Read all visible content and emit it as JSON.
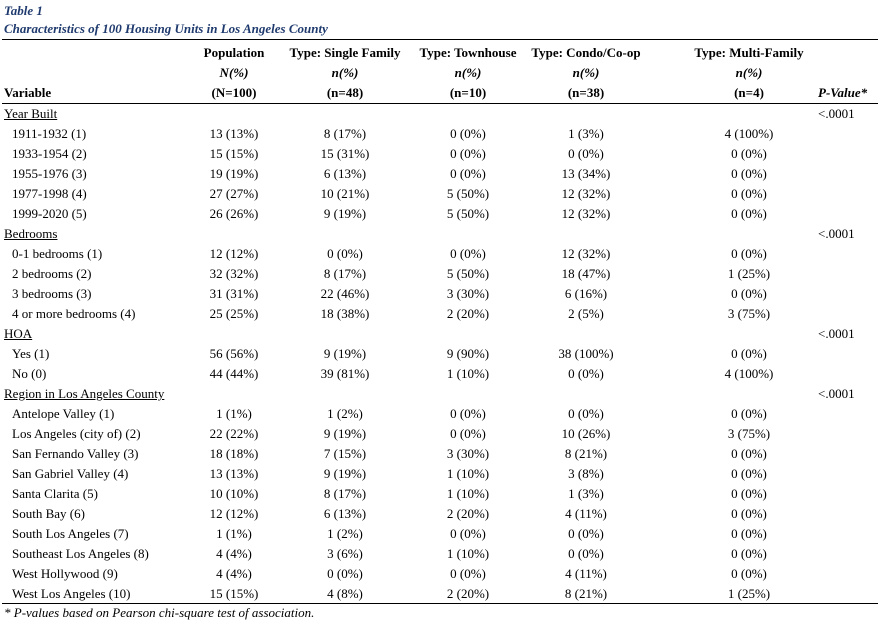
{
  "table_label": "Table 1",
  "title": "Characteristics of 100 Housing Units in Los Angeles County",
  "columns": [
    {
      "name": "Population",
      "stat": "N(%)",
      "n": "(N=100)"
    },
    {
      "name": "Type: Single Family",
      "stat": "n(%)",
      "n": "(n=48)"
    },
    {
      "name": "Type: Townhouse",
      "stat": "n(%)",
      "n": "(n=10)"
    },
    {
      "name": "Type: Condo/Co-op",
      "stat": "n(%)",
      "n": "(n=38)"
    },
    {
      "name": "Type: Multi-Family",
      "stat": "n(%)",
      "n": "(n=4)"
    }
  ],
  "variable_header": "Variable",
  "pvalue_header": "P-Value*",
  "sections": [
    {
      "label": "Year Built",
      "pvalue": "<.0001",
      "rows": [
        {
          "label": "1911-1932 (1)",
          "values": [
            "13 (13%)",
            "8 (17%)",
            "0 (0%)",
            "1 (3%)",
            "4 (100%)"
          ]
        },
        {
          "label": "1933-1954 (2)",
          "values": [
            "15 (15%)",
            "15 (31%)",
            "0 (0%)",
            "0 (0%)",
            "0 (0%)"
          ]
        },
        {
          "label": "1955-1976 (3)",
          "values": [
            "19 (19%)",
            "6 (13%)",
            "0 (0%)",
            "13 (34%)",
            "0 (0%)"
          ]
        },
        {
          "label": "1977-1998 (4)",
          "values": [
            "27 (27%)",
            "10 (21%)",
            "5 (50%)",
            "12 (32%)",
            "0 (0%)"
          ]
        },
        {
          "label": "1999-2020 (5)",
          "values": [
            "26 (26%)",
            "9 (19%)",
            "5 (50%)",
            "12 (32%)",
            "0 (0%)"
          ]
        }
      ]
    },
    {
      "label": "Bedrooms",
      "pvalue": "<.0001",
      "rows": [
        {
          "label": "0-1 bedrooms (1)",
          "values": [
            "12 (12%)",
            "0 (0%)",
            "0 (0%)",
            "12 (32%)",
            "0 (0%)"
          ]
        },
        {
          "label": "2 bedrooms (2)",
          "values": [
            "32 (32%)",
            "8 (17%)",
            "5 (50%)",
            "18 (47%)",
            "1 (25%)"
          ]
        },
        {
          "label": "3 bedrooms (3)",
          "values": [
            "31 (31%)",
            "22 (46%)",
            "3 (30%)",
            "6 (16%)",
            "0 (0%)"
          ]
        },
        {
          "label": "4 or more bedrooms (4)",
          "values": [
            "25 (25%)",
            "18 (38%)",
            "2 (20%)",
            "2 (5%)",
            "3 (75%)"
          ]
        }
      ]
    },
    {
      "label": "HOA",
      "pvalue": "<.0001",
      "rows": [
        {
          "label": "Yes (1)",
          "values": [
            "56 (56%)",
            "9 (19%)",
            "9 (90%)",
            "38 (100%)",
            "0 (0%)"
          ]
        },
        {
          "label": "No (0)",
          "values": [
            "44 (44%)",
            "39 (81%)",
            "1 (10%)",
            "0 (0%)",
            "4 (100%)"
          ]
        }
      ]
    },
    {
      "label": "Region in Los Angeles County",
      "pvalue": "<.0001",
      "rows": [
        {
          "label": "Antelope Valley (1)",
          "values": [
            "1 (1%)",
            "1 (2%)",
            "0 (0%)",
            "0 (0%)",
            "0 (0%)"
          ]
        },
        {
          "label": "Los Angeles (city of) (2)",
          "values": [
            "22 (22%)",
            "9 (19%)",
            "0 (0%)",
            "10 (26%)",
            "3 (75%)"
          ]
        },
        {
          "label": "San Fernando Valley (3)",
          "values": [
            "18 (18%)",
            "7 (15%)",
            "3 (30%)",
            "8 (21%)",
            "0 (0%)"
          ]
        },
        {
          "label": "San Gabriel Valley (4)",
          "values": [
            "13 (13%)",
            "9 (19%)",
            "1 (10%)",
            "3 (8%)",
            "0 (0%)"
          ]
        },
        {
          "label": "Santa Clarita (5)",
          "values": [
            "10 (10%)",
            "8 (17%)",
            "1 (10%)",
            "1 (3%)",
            "0 (0%)"
          ]
        },
        {
          "label": "South Bay (6)",
          "values": [
            "12 (12%)",
            "6 (13%)",
            "2 (20%)",
            "4 (11%)",
            "0 (0%)"
          ]
        },
        {
          "label": "South Los Angeles (7)",
          "values": [
            "1 (1%)",
            "1 (2%)",
            "0 (0%)",
            "0 (0%)",
            "0 (0%)"
          ]
        },
        {
          "label": "Southeast Los Angeles (8)",
          "values": [
            "4 (4%)",
            "3 (6%)",
            "1 (10%)",
            "0 (0%)",
            "0 (0%)"
          ]
        },
        {
          "label": "West Hollywood (9)",
          "values": [
            "4 (4%)",
            "0 (0%)",
            "0 (0%)",
            "4 (11%)",
            "0 (0%)"
          ]
        },
        {
          "label": "West Los Angeles (10)",
          "values": [
            "15 (15%)",
            "4 (8%)",
            "2 (20%)",
            "8 (21%)",
            "1 (25%)"
          ]
        }
      ]
    }
  ],
  "footnote": "* P-values based on Pearson chi-square test of association.",
  "colors": {
    "caption": "#1f3a6e",
    "text": "#000000",
    "rule": "#000000"
  }
}
